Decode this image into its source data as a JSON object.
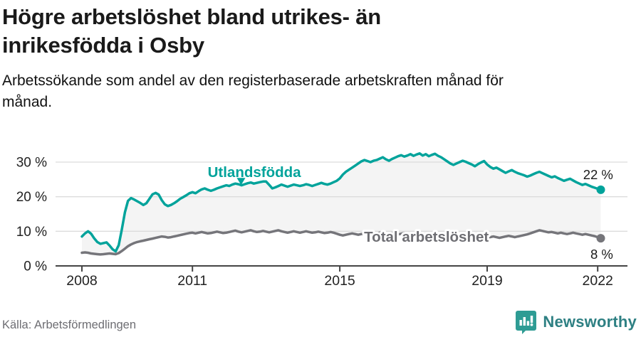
{
  "header": {
    "title": "Högre arbetslöshet bland utrikes- än\ninrikesfödda i Osby",
    "subtitle": "Arbetssökande som andel av den registerbaserade arbetskraften månad för\nmånad."
  },
  "footer": {
    "source": "Källa: Arbetsförmedlingen",
    "logo_text": "Newsworthy"
  },
  "colors": {
    "accent_teal": "#00a39b",
    "line_gray": "#75757a",
    "label_gray": "#6e6e73",
    "text_dark": "#1a1a1a",
    "grid": "#dcdcdc",
    "axis": "#454545",
    "band_fill": "#f4f4f4",
    "logo_badge": "#2e9c94",
    "logo_text_color": "#2e8083"
  },
  "chart_data": {
    "type": "line",
    "x_start_year": 2008,
    "x_months_per_point": 1,
    "x_ticks": [
      2008,
      2011,
      2015,
      2019,
      2022
    ],
    "y_ticks": [
      0,
      10,
      20,
      30
    ],
    "y_tick_suffix": " %",
    "ylim": [
      0,
      33.5
    ],
    "grid": true,
    "legend_position": "inline-labels",
    "band_fill_between_series": true,
    "series": [
      {
        "name": "Utlandsfödda",
        "color": "#00a39b",
        "end_value_label": "22 %",
        "values": [
          8.5,
          9.4,
          10.0,
          9.3,
          8.0,
          6.9,
          6.4,
          6.6,
          6.8,
          5.9,
          4.8,
          4.2,
          6.0,
          10.5,
          15.5,
          18.8,
          19.6,
          19.2,
          18.7,
          18.2,
          17.6,
          18.1,
          19.4,
          20.7,
          21.1,
          20.6,
          19.0,
          17.8,
          17.3,
          17.6,
          18.1,
          18.7,
          19.4,
          19.9,
          20.4,
          21.0,
          21.3,
          21.0,
          21.6,
          22.1,
          22.4,
          22.0,
          21.7,
          22.0,
          22.4,
          22.7,
          23.0,
          23.3,
          23.1,
          23.5,
          23.8,
          23.6,
          23.3,
          23.6,
          23.9,
          24.1,
          23.8,
          24.0,
          24.2,
          24.4,
          24.4,
          23.4,
          22.4,
          22.7,
          23.1,
          23.5,
          23.2,
          22.9,
          23.2,
          23.5,
          23.3,
          23.1,
          23.3,
          23.6,
          23.4,
          23.1,
          23.4,
          23.7,
          24.0,
          23.7,
          23.5,
          23.8,
          24.2,
          24.6,
          25.3,
          26.4,
          27.2,
          27.8,
          28.4,
          29.0,
          29.6,
          30.2,
          30.6,
          30.3,
          30.0,
          30.4,
          30.6,
          31.0,
          31.4,
          30.8,
          30.4,
          30.9,
          31.3,
          31.7,
          32.0,
          31.6,
          31.9,
          32.3,
          31.8,
          32.2,
          32.5,
          31.9,
          32.3,
          31.7,
          32.1,
          32.4,
          31.8,
          31.4,
          30.8,
          30.2,
          29.6,
          29.2,
          29.6,
          30.0,
          30.4,
          30.1,
          29.7,
          29.3,
          28.8,
          29.4,
          29.9,
          30.3,
          29.3,
          28.6,
          28.1,
          28.4,
          27.9,
          27.4,
          26.9,
          27.3,
          27.7,
          27.2,
          26.8,
          26.5,
          26.2,
          25.8,
          26.1,
          26.5,
          26.9,
          27.2,
          26.8,
          26.4,
          26.0,
          25.6,
          25.9,
          25.4,
          25.0,
          24.6,
          24.9,
          25.2,
          24.7,
          24.2,
          23.8,
          23.4,
          23.7,
          23.3,
          22.9,
          22.6,
          22.3,
          22.0
        ]
      },
      {
        "name": "Total arbetslöshet",
        "color": "#75757a",
        "end_value_label": "8 %",
        "values": [
          3.8,
          3.9,
          3.8,
          3.6,
          3.5,
          3.4,
          3.3,
          3.4,
          3.5,
          3.6,
          3.5,
          3.4,
          3.7,
          4.3,
          5.0,
          5.7,
          6.2,
          6.6,
          6.9,
          7.1,
          7.3,
          7.5,
          7.7,
          7.9,
          8.1,
          8.3,
          8.5,
          8.4,
          8.2,
          8.3,
          8.5,
          8.7,
          8.9,
          9.1,
          9.3,
          9.5,
          9.6,
          9.4,
          9.6,
          9.8,
          9.6,
          9.4,
          9.5,
          9.7,
          9.9,
          9.7,
          9.5,
          9.6,
          9.8,
          10.0,
          10.2,
          9.9,
          9.7,
          9.9,
          10.1,
          10.3,
          10.0,
          9.8,
          9.9,
          10.1,
          9.9,
          9.7,
          9.9,
          10.1,
          10.3,
          10.0,
          9.8,
          9.6,
          9.8,
          10.0,
          9.8,
          9.6,
          9.8,
          10.0,
          9.8,
          9.6,
          9.7,
          9.9,
          9.7,
          9.5,
          9.6,
          9.8,
          9.6,
          9.3,
          9.0,
          8.8,
          9.0,
          9.2,
          9.4,
          9.2,
          9.0,
          9.2,
          9.4,
          9.6,
          9.4,
          9.2,
          9.4,
          9.6,
          9.4,
          9.2,
          9.3,
          9.5,
          9.3,
          9.1,
          9.3,
          9.5,
          9.3,
          9.1,
          9.3,
          9.5,
          9.3,
          9.1,
          8.9,
          9.1,
          9.3,
          9.1,
          8.9,
          8.7,
          8.9,
          9.1,
          8.9,
          8.7,
          8.5,
          8.7,
          8.9,
          8.7,
          8.5,
          8.3,
          8.5,
          8.7,
          8.5,
          8.3,
          8.1,
          8.3,
          8.5,
          8.3,
          8.1,
          8.3,
          8.5,
          8.7,
          8.5,
          8.3,
          8.5,
          8.7,
          8.9,
          9.1,
          9.4,
          9.7,
          10.0,
          10.3,
          10.1,
          9.9,
          9.7,
          9.8,
          9.6,
          9.4,
          9.6,
          9.4,
          9.2,
          9.4,
          9.6,
          9.4,
          9.2,
          9.0,
          9.2,
          9.0,
          8.8,
          8.6,
          8.3,
          8.0
        ]
      }
    ],
    "annotations": [
      {
        "id": "series-label-utlandsfodda",
        "text": "Utlandsfödda",
        "year": 2012.68,
        "pct": 25.7,
        "color": "#00a39b",
        "bold": true,
        "size": 20.5,
        "anchor": "middle",
        "halo": true
      },
      {
        "id": "label-marker-triangle",
        "type": "triangle",
        "year": 2012.32,
        "pct": 24.4,
        "color": "#00a39b"
      },
      {
        "id": "series-label-total",
        "text": "Total arbetslöshet",
        "year": 2017.35,
        "pct": 7.0,
        "color": "#6e6e73",
        "bold": true,
        "size": 20.5,
        "anchor": "middle",
        "halo": true
      },
      {
        "id": "end-label-utlandsfodda",
        "text": "22 %",
        "year": 2022.42,
        "pct": 25.1,
        "color": "#1a1a1a",
        "bold": false,
        "size": 18.5,
        "anchor": "end",
        "halo": false
      },
      {
        "id": "end-label-total",
        "text": "8 %",
        "year": 2022.42,
        "pct": 2.1,
        "color": "#1a1a1a",
        "bold": false,
        "size": 18.5,
        "anchor": "end",
        "halo": false
      }
    ]
  }
}
